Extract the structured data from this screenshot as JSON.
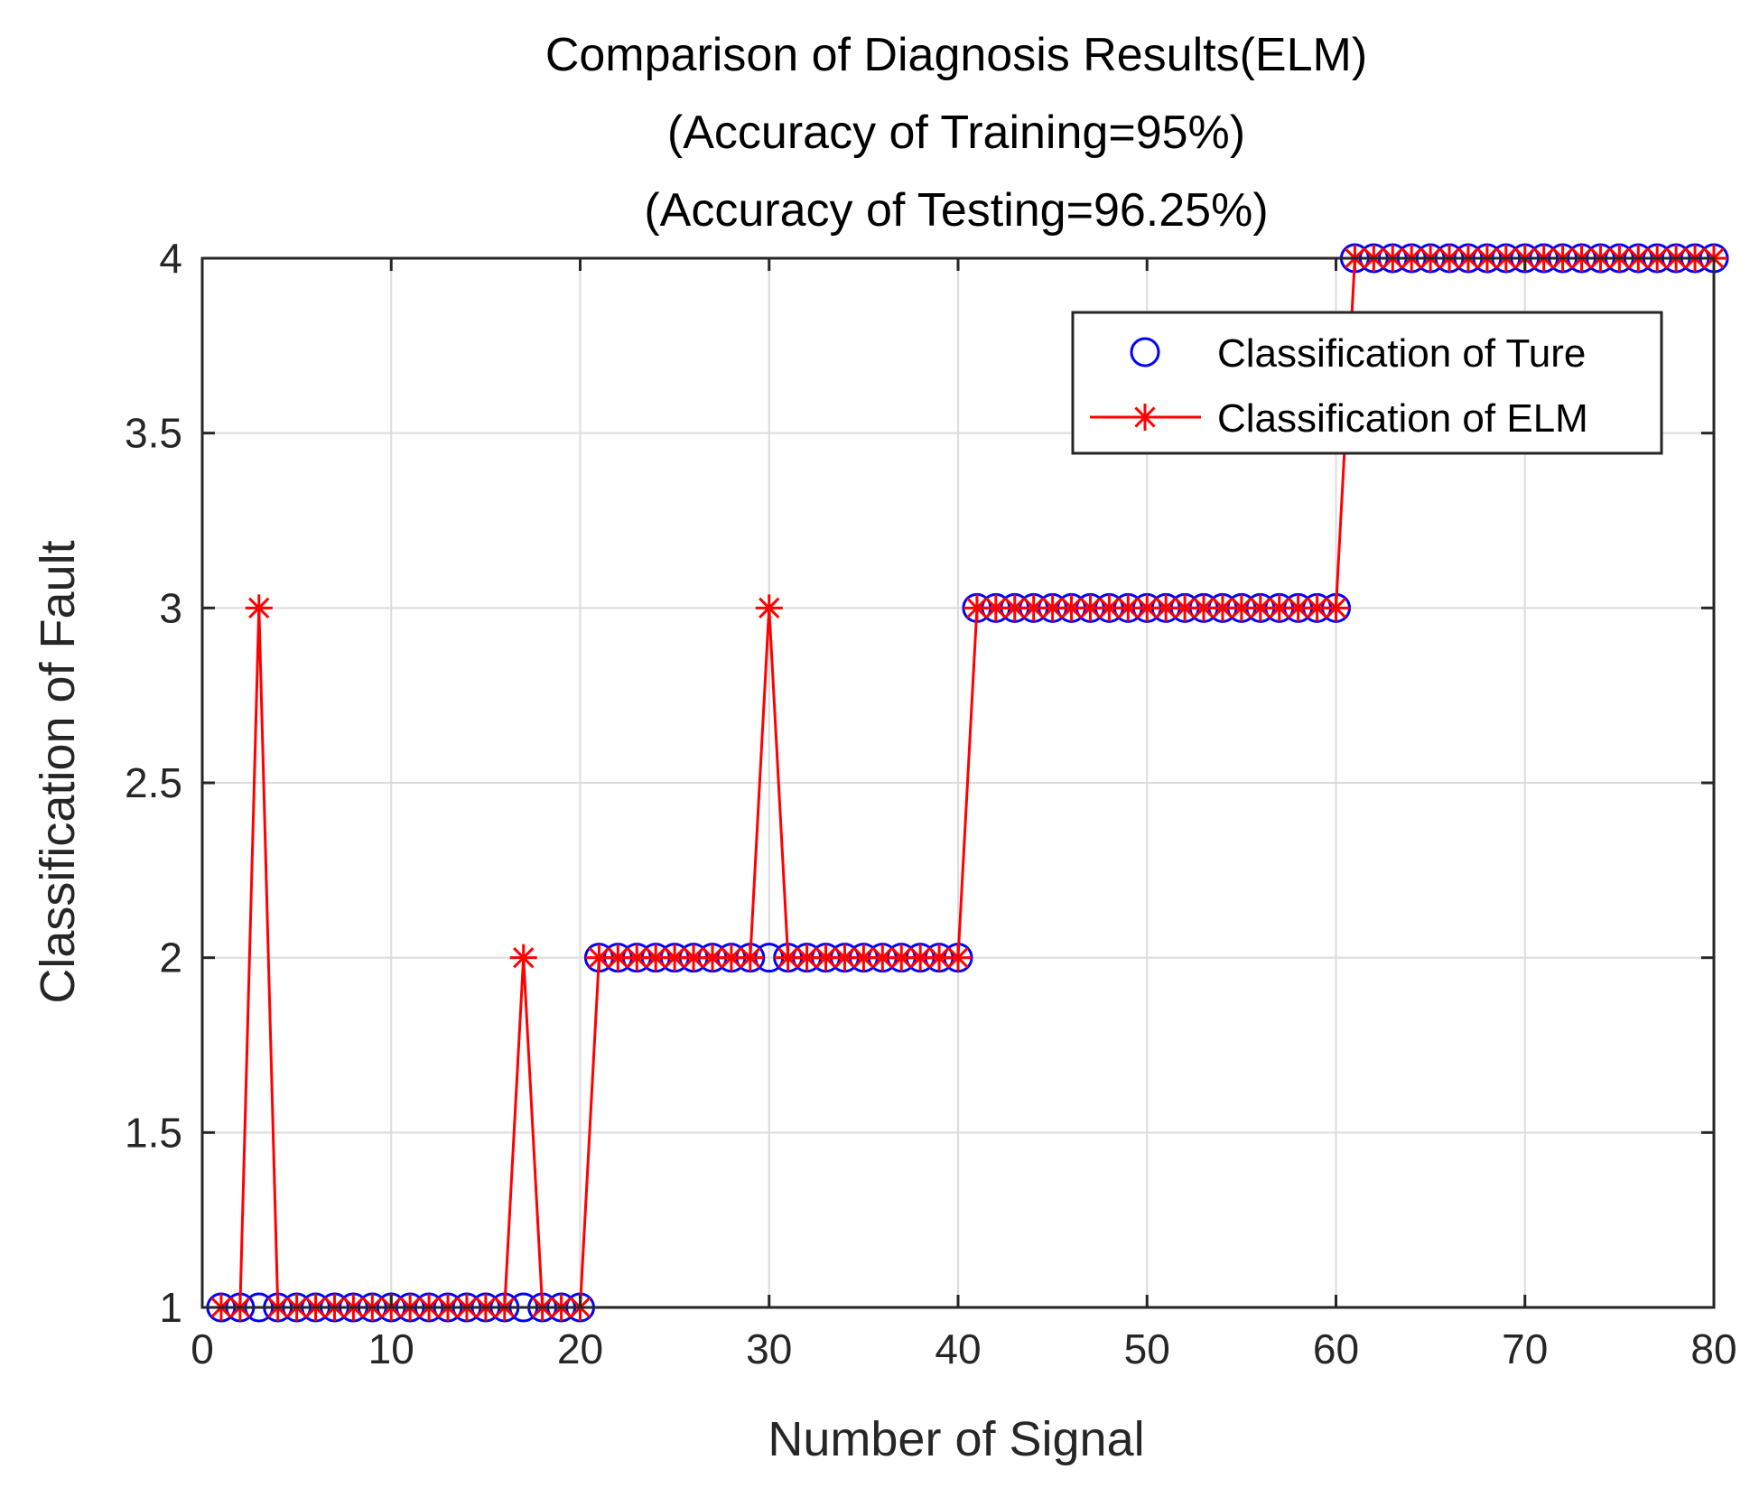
{
  "chart_data": {
    "type": "line",
    "title_lines": [
      "Comparison of Diagnosis Results(ELM)",
      "(Accuracy of Training=95%)",
      "(Accuracy of Testing=96.25%)"
    ],
    "xlabel": "Number of Signal",
    "ylabel": "Classification of Fault",
    "xlim": [
      0,
      80
    ],
    "ylim": [
      1,
      4
    ],
    "xticks": [
      0,
      10,
      20,
      30,
      40,
      50,
      60,
      70,
      80
    ],
    "yticks": [
      1,
      1.5,
      2,
      2.5,
      3,
      3.5,
      4
    ],
    "xtick_labels": [
      "0",
      "10",
      "20",
      "30",
      "40",
      "50",
      "60",
      "70",
      "80"
    ],
    "ytick_labels": [
      "1",
      "1.5",
      "2",
      "2.5",
      "3",
      "3.5",
      "4"
    ],
    "grid": true,
    "legend_position": "top-right",
    "x": [
      1,
      2,
      3,
      4,
      5,
      6,
      7,
      8,
      9,
      10,
      11,
      12,
      13,
      14,
      15,
      16,
      17,
      18,
      19,
      20,
      21,
      22,
      23,
      24,
      25,
      26,
      27,
      28,
      29,
      30,
      31,
      32,
      33,
      34,
      35,
      36,
      37,
      38,
      39,
      40,
      41,
      42,
      43,
      44,
      45,
      46,
      47,
      48,
      49,
      50,
      51,
      52,
      53,
      54,
      55,
      56,
      57,
      58,
      59,
      60,
      61,
      62,
      63,
      64,
      65,
      66,
      67,
      68,
      69,
      70,
      71,
      72,
      73,
      74,
      75,
      76,
      77,
      78,
      79,
      80
    ],
    "series": [
      {
        "name": "Classification of Ture",
        "marker": "circle",
        "line": "none",
        "color": "#0000ff",
        "values": [
          1,
          1,
          1,
          1,
          1,
          1,
          1,
          1,
          1,
          1,
          1,
          1,
          1,
          1,
          1,
          1,
          1,
          1,
          1,
          1,
          2,
          2,
          2,
          2,
          2,
          2,
          2,
          2,
          2,
          2,
          2,
          2,
          2,
          2,
          2,
          2,
          2,
          2,
          2,
          2,
          3,
          3,
          3,
          3,
          3,
          3,
          3,
          3,
          3,
          3,
          3,
          3,
          3,
          3,
          3,
          3,
          3,
          3,
          3,
          3,
          4,
          4,
          4,
          4,
          4,
          4,
          4,
          4,
          4,
          4,
          4,
          4,
          4,
          4,
          4,
          4,
          4,
          4,
          4,
          4
        ]
      },
      {
        "name": "Classification of ELM",
        "marker": "asterisk",
        "line": "solid",
        "color": "#ff0000",
        "values": [
          1,
          1,
          3,
          1,
          1,
          1,
          1,
          1,
          1,
          1,
          1,
          1,
          1,
          1,
          1,
          1,
          2,
          1,
          1,
          1,
          2,
          2,
          2,
          2,
          2,
          2,
          2,
          2,
          2,
          3,
          2,
          2,
          2,
          2,
          2,
          2,
          2,
          2,
          2,
          2,
          3,
          3,
          3,
          3,
          3,
          3,
          3,
          3,
          3,
          3,
          3,
          3,
          3,
          3,
          3,
          3,
          3,
          3,
          3,
          3,
          4,
          4,
          4,
          4,
          4,
          4,
          4,
          4,
          4,
          4,
          4,
          4,
          4,
          4,
          4,
          4,
          4,
          4,
          4,
          4
        ]
      }
    ]
  }
}
